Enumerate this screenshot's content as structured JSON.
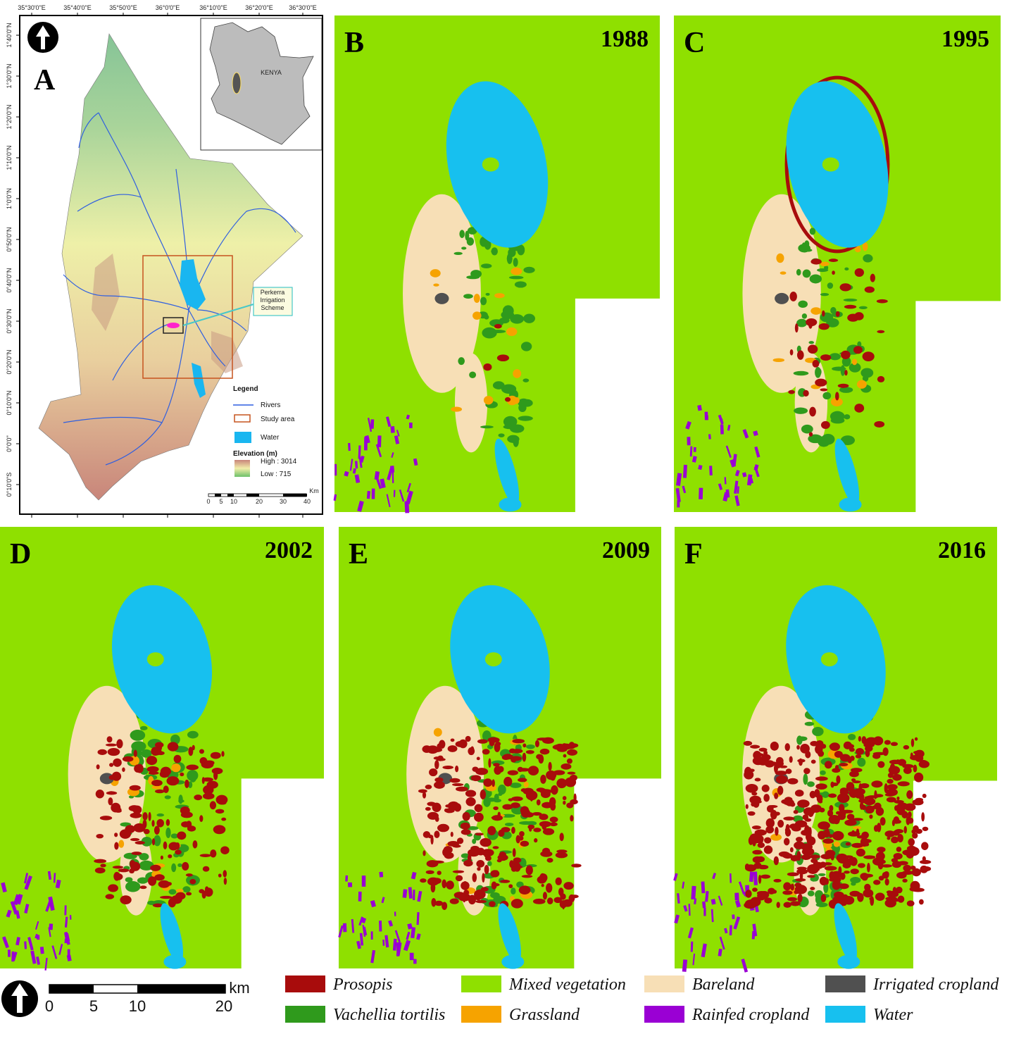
{
  "panel_a": {
    "label": "A",
    "lon_labels": [
      "35°30'0\"E",
      "35°40'0\"E",
      "35°50'0\"E",
      "36°0'0\"E",
      "36°10'0\"E",
      "36°20'0\"E",
      "36°30'0\"E"
    ],
    "lat_labels": [
      "1°40'0\"N",
      "1°30'0\"N",
      "1°20'0\"N",
      "1°10'0\"N",
      "1°0'0\"N",
      "0°50'0\"N",
      "0°40'0\"N",
      "0°30'0\"N",
      "0°20'0\"N",
      "0°10'0\"N",
      "0°0'0\"",
      "0°10'0\"S"
    ],
    "inset_label": "KENYA",
    "callout": [
      "Perkerra",
      "Irrigation",
      "Scheme"
    ],
    "legend": {
      "title": "Legend",
      "items": [
        "Rivers",
        "Study area",
        "Water"
      ],
      "elevation_title": "Elevation (m)",
      "high": "High : 3014",
      "low": "Low : 715"
    },
    "scale": {
      "unit": "Km",
      "labels": [
        "0",
        "5",
        "10",
        "20",
        "30",
        "40"
      ]
    }
  },
  "panels": [
    {
      "label": "B",
      "year": "1988"
    },
    {
      "label": "C",
      "year": "1995"
    },
    {
      "label": "D",
      "year": "2002"
    },
    {
      "label": "E",
      "year": "2009"
    },
    {
      "label": "F",
      "year": "2016"
    }
  ],
  "scale_bar": {
    "labels": [
      "0",
      "5",
      "10",
      "20"
    ],
    "unit": "km"
  },
  "legend": [
    {
      "name": "Prosopis",
      "color": "#a80c0c"
    },
    {
      "name": "Mixed vegetation",
      "color": "#8fe000"
    },
    {
      "name": "Bareland",
      "color": "#f7dfb6"
    },
    {
      "name": "Irrigated cropland",
      "color": "#505050"
    },
    {
      "name": "Vachellia tortilis",
      "color": "#2f9a1c"
    },
    {
      "name": "Grassland",
      "color": "#f6a300"
    },
    {
      "name": "Rainfed cropland",
      "color": "#9a00d4"
    },
    {
      "name": "Water",
      "color": "#17c0ef"
    }
  ]
}
